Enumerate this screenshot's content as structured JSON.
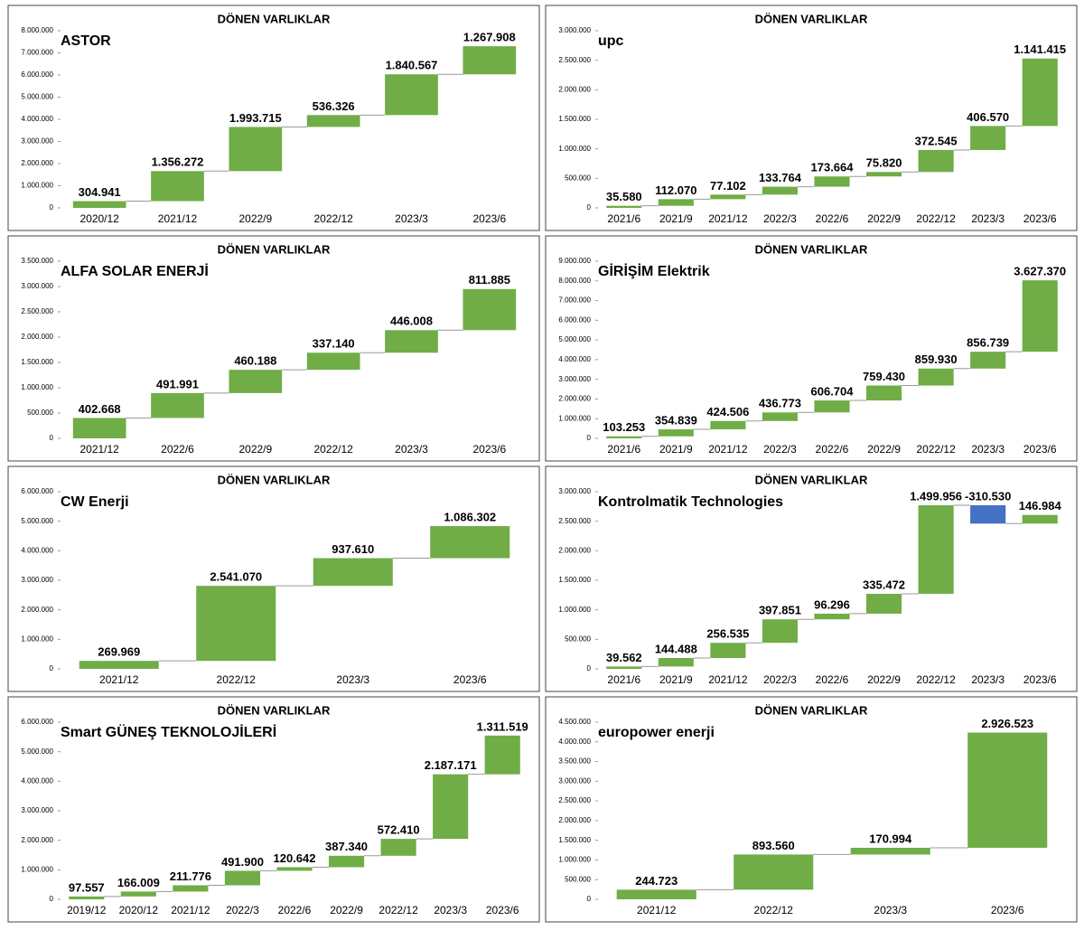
{
  "chart_data": [
    {
      "type": "waterfall",
      "title": "DÖNEN VARLIKLAR",
      "logo": "ASTOR",
      "color": "#70ad47",
      "negative_color": "#4472c4",
      "categories": [
        "2020/12",
        "2021/12",
        "2022/9",
        "2022/12",
        "2023/3",
        "2023/6"
      ],
      "values": [
        304941,
        1356272,
        1993715,
        536326,
        1840567,
        1267908
      ],
      "value_labels": [
        "304.941",
        "1.356.272",
        "1.993.715",
        "536.326",
        "1.840.567",
        "1.267.908"
      ],
      "ylim": [
        0,
        8000000
      ],
      "yticks": [
        0,
        {
          "value": 1000000,
          "label": "1.000.000"
        },
        {
          "value": 2000000,
          "label": "2.000.000"
        },
        {
          "value": 3000000,
          "label": "3.000.000"
        },
        {
          "value": 4000000,
          "label": "4.000.000"
        },
        {
          "value": 5000000,
          "label": "5.000.000"
        },
        {
          "value": 6000000,
          "label": "6.000.000"
        },
        {
          "value": 7000000,
          "label": "7.000.000"
        },
        {
          "value": 8000000,
          "label": "8.000.000"
        }
      ]
    },
    {
      "type": "waterfall",
      "title": "DÖNEN VARLIKLAR",
      "logo": "upc",
      "color": "#70ad47",
      "negative_color": "#4472c4",
      "categories": [
        "2021/6",
        "2021/9",
        "2021/12",
        "2022/3",
        "2022/6",
        "2022/9",
        "2022/12",
        "2023/3",
        "2023/6"
      ],
      "values": [
        35580,
        112070,
        77102,
        133764,
        173664,
        75820,
        372545,
        406570,
        1141415
      ],
      "value_labels": [
        "35.580",
        "112.070",
        "77.102",
        "133.764",
        "173.664",
        "75.820",
        "372.545",
        "406.570",
        "1.141.415"
      ],
      "ylim": [
        0,
        3000000
      ],
      "yticks": [
        0,
        {
          "value": 500000,
          "label": "500.000"
        },
        {
          "value": 1000000,
          "label": "1.000.000"
        },
        {
          "value": 1500000,
          "label": "1.500.000"
        },
        {
          "value": 2000000,
          "label": "2.000.000"
        },
        {
          "value": 2500000,
          "label": "2.500.000"
        },
        {
          "value": 3000000,
          "label": "3.000.000"
        }
      ]
    },
    {
      "type": "waterfall",
      "title": "DÖNEN VARLIKLAR",
      "logo": "ALFA SOLAR ENERJİ",
      "color": "#70ad47",
      "negative_color": "#4472c4",
      "categories": [
        "2021/12",
        "2022/6",
        "2022/9",
        "2022/12",
        "2023/3",
        "2023/6"
      ],
      "values": [
        402668,
        491991,
        460188,
        337140,
        446008,
        811885
      ],
      "value_labels": [
        "402.668",
        "491.991",
        "460.188",
        "337.140",
        "446.008",
        "811.885"
      ],
      "ylim": [
        0,
        3500000
      ],
      "yticks": [
        0,
        {
          "value": 500000,
          "label": "500.000"
        },
        {
          "value": 1000000,
          "label": "1.000.000"
        },
        {
          "value": 1500000,
          "label": "1.500.000"
        },
        {
          "value": 2000000,
          "label": "2.000.000"
        },
        {
          "value": 2500000,
          "label": "2.500.000"
        },
        {
          "value": 3000000,
          "label": "3.000.000"
        },
        {
          "value": 3500000,
          "label": "3.500.000"
        }
      ]
    },
    {
      "type": "waterfall",
      "title": "DÖNEN VARLIKLAR",
      "logo": "GİRİŞİM Elektrik",
      "color": "#70ad47",
      "negative_color": "#4472c4",
      "categories": [
        "2021/6",
        "2021/9",
        "2021/12",
        "2022/3",
        "2022/6",
        "2022/9",
        "2022/12",
        "2023/3",
        "2023/6"
      ],
      "values": [
        103253,
        354839,
        424506,
        436773,
        606704,
        759430,
        859930,
        856739,
        3627370
      ],
      "value_labels": [
        "103.253",
        "354.839",
        "424.506",
        "436.773",
        "606.704",
        "759.430",
        "859.930",
        "856.739",
        "3.627.370"
      ],
      "ylim": [
        0,
        9000000
      ],
      "yticks": [
        0,
        {
          "value": 1000000,
          "label": "1.000.000"
        },
        {
          "value": 2000000,
          "label": "2.000.000"
        },
        {
          "value": 3000000,
          "label": "3.000.000"
        },
        {
          "value": 4000000,
          "label": "4.000.000"
        },
        {
          "value": 5000000,
          "label": "5.000.000"
        },
        {
          "value": 6000000,
          "label": "6.000.000"
        },
        {
          "value": 7000000,
          "label": "7.000.000"
        },
        {
          "value": 8000000,
          "label": "8.000.000"
        },
        {
          "value": 9000000,
          "label": "9.000.000"
        }
      ]
    },
    {
      "type": "waterfall",
      "title": "DÖNEN VARLIKLAR",
      "logo": "CW Enerji",
      "color": "#70ad47",
      "negative_color": "#4472c4",
      "categories": [
        "2021/12",
        "2022/12",
        "2023/3",
        "2023/6"
      ],
      "values": [
        269969,
        2541070,
        937610,
        1086302
      ],
      "value_labels": [
        "269.969",
        "2.541.070",
        "937.610",
        "1.086.302"
      ],
      "ylim": [
        0,
        6000000
      ],
      "yticks": [
        0,
        {
          "value": 1000000,
          "label": "1.000.000"
        },
        {
          "value": 2000000,
          "label": "2.000.000"
        },
        {
          "value": 3000000,
          "label": "3.000.000"
        },
        {
          "value": 4000000,
          "label": "4.000.000"
        },
        {
          "value": 5000000,
          "label": "5.000.000"
        },
        {
          "value": 6000000,
          "label": "6.000.000"
        }
      ]
    },
    {
      "type": "waterfall",
      "title": "DÖNEN VARLIKLAR",
      "logo": "Kontrolmatik Technologies",
      "color": "#70ad47",
      "negative_color": "#4472c4",
      "categories": [
        "2021/6",
        "2021/9",
        "2021/12",
        "2022/3",
        "2022/6",
        "2022/9",
        "2022/12",
        "2023/3",
        "2023/6"
      ],
      "values": [
        39562,
        144488,
        256535,
        397851,
        96296,
        335472,
        1499956,
        -310530,
        146984
      ],
      "value_labels": [
        "39.562",
        "144.488",
        "256.535",
        "397.851",
        "96.296",
        "335.472",
        "1.499.956",
        "-310.530",
        "146.984"
      ],
      "ylim": [
        0,
        3000000
      ],
      "yticks": [
        0,
        {
          "value": 500000,
          "label": "500.000"
        },
        {
          "value": 1000000,
          "label": "1.000.000"
        },
        {
          "value": 1500000,
          "label": "1.500.000"
        },
        {
          "value": 2000000,
          "label": "2.000.000"
        },
        {
          "value": 2500000,
          "label": "2.500.000"
        },
        {
          "value": 3000000,
          "label": "3.000.000"
        }
      ]
    },
    {
      "type": "waterfall",
      "title": "DÖNEN VARLIKLAR",
      "logo": "Smart GÜNEŞ TEKNOLOJİLERİ",
      "color": "#70ad47",
      "negative_color": "#4472c4",
      "categories": [
        "2019/12",
        "2020/12",
        "2021/12",
        "2022/3",
        "2022/6",
        "2022/9",
        "2022/12",
        "2023/3",
        "2023/6"
      ],
      "values": [
        97557,
        166009,
        211776,
        491900,
        120642,
        387340,
        572410,
        2187171,
        1311519
      ],
      "value_labels": [
        "97.557",
        "166.009",
        "211.776",
        "491.900",
        "120.642",
        "387.340",
        "572.410",
        "2.187.171",
        "1.311.519"
      ],
      "ylim": [
        0,
        6000000
      ],
      "yticks": [
        0,
        {
          "value": 1000000,
          "label": "1.000.000"
        },
        {
          "value": 2000000,
          "label": "2.000.000"
        },
        {
          "value": 3000000,
          "label": "3.000.000"
        },
        {
          "value": 4000000,
          "label": "4.000.000"
        },
        {
          "value": 5000000,
          "label": "5.000.000"
        },
        {
          "value": 6000000,
          "label": "6.000.000"
        }
      ]
    },
    {
      "type": "waterfall",
      "title": "DÖNEN VARLIKLAR",
      "logo": "europower enerji",
      "color": "#70ad47",
      "negative_color": "#4472c4",
      "categories": [
        "2021/12",
        "2022/12",
        "2023/3",
        "2023/6"
      ],
      "values": [
        244723,
        893560,
        170994,
        2926523
      ],
      "value_labels": [
        "244.723",
        "893.560",
        "170.994",
        "2.926.523"
      ],
      "ylim": [
        0,
        4500000
      ],
      "yticks": [
        0,
        {
          "value": 500000,
          "label": "500.000"
        },
        {
          "value": 1000000,
          "label": "1.000.000"
        },
        {
          "value": 1500000,
          "label": "1.500.000"
        },
        {
          "value": 2000000,
          "label": "2.000.000"
        },
        {
          "value": 2500000,
          "label": "2.500.000"
        },
        {
          "value": 3000000,
          "label": "3.000.000"
        },
        {
          "value": 3500000,
          "label": "3.500.000"
        },
        {
          "value": 4000000,
          "label": "4.000.000"
        },
        {
          "value": 4500000,
          "label": "4.500.000"
        }
      ]
    }
  ]
}
